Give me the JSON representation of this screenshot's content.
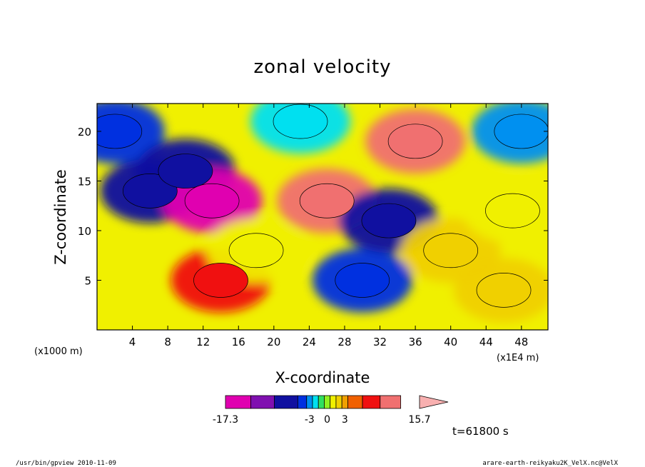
{
  "chart_data": {
    "type": "heatmap",
    "title": "zonal velocity",
    "xlabel": "X-coordinate",
    "ylabel": "Z-coordinate",
    "x_unit": "(x1000 m)",
    "y_unit": "(x1E4 m)",
    "x_ticks": [
      4,
      8,
      12,
      16,
      20,
      24,
      28,
      32,
      36,
      40,
      44,
      48
    ],
    "y_ticks": [
      5,
      10,
      15,
      20
    ],
    "xlim": [
      0,
      51
    ],
    "ylim": [
      0,
      22.8
    ],
    "colorbar": {
      "labels": [
        "-17.3",
        "-3",
        "0",
        "3",
        "15.7"
      ],
      "label_positions": [
        -17.3,
        -3,
        0,
        3,
        15.7
      ],
      "colors": [
        "#e000b0",
        "#8010b0",
        "#1010a0",
        "#0030e0",
        "#0090f0",
        "#00e0f0",
        "#30e060",
        "#90f020",
        "#f0f000",
        "#f0d000",
        "#f0a000",
        "#f06000",
        "#f01010",
        "#f07070",
        "#f8b0b0"
      ]
    },
    "field_samples": [
      {
        "x": 2,
        "z": 20,
        "value": -4
      },
      {
        "x": 6,
        "z": 14,
        "value": -6
      },
      {
        "x": 10,
        "z": 16,
        "value": -8
      },
      {
        "x": 13,
        "z": 13,
        "value": -15
      },
      {
        "x": 14,
        "z": 5,
        "value": 8
      },
      {
        "x": 18,
        "z": 8,
        "value": 1
      },
      {
        "x": 23,
        "z": 21,
        "value": -2
      },
      {
        "x": 26,
        "z": 13,
        "value": 9
      },
      {
        "x": 30,
        "z": 5,
        "value": -5
      },
      {
        "x": 33,
        "z": 11,
        "value": -6
      },
      {
        "x": 36,
        "z": 19,
        "value": 10
      },
      {
        "x": 40,
        "z": 8,
        "value": 2
      },
      {
        "x": 46,
        "z": 4,
        "value": 2
      },
      {
        "x": 47,
        "z": 12,
        "value": 1
      },
      {
        "x": 48,
        "z": 20,
        "value": -3
      }
    ],
    "time_label": "t=61800 s"
  },
  "footer": {
    "left": "/usr/bin/gpview  2010-11-09",
    "right": "arare-earth-reikyaku2K_VelX.nc@VelX"
  }
}
